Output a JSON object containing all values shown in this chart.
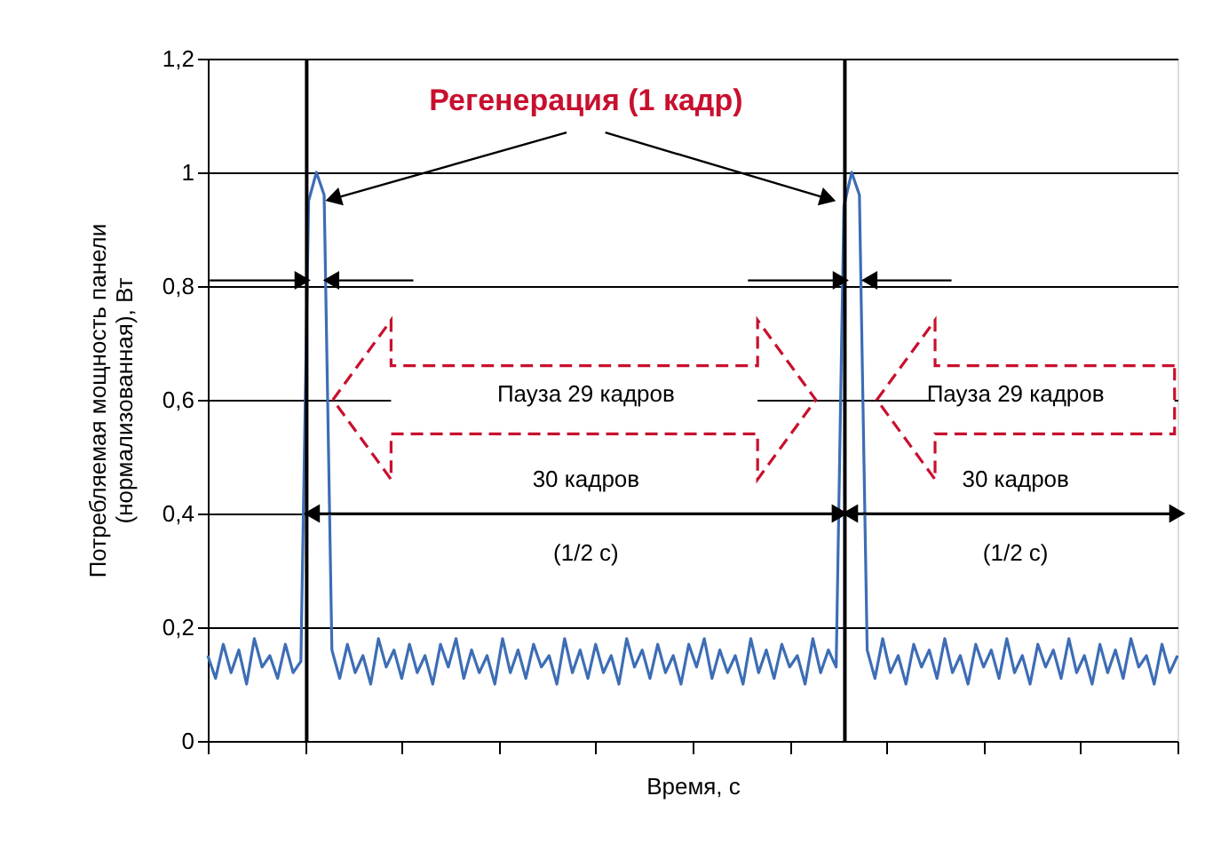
{
  "chart_data": {
    "type": "line",
    "xlabel": "Время, с",
    "ylabel": "Потребляемая мощность панели\n(нормализованная), Вт",
    "categories": [
      null,
      null,
      null,
      null,
      null,
      null,
      null,
      null,
      null,
      null,
      null,
      null,
      null,
      null,
      null,
      null,
      null,
      null,
      null,
      null,
      null,
      null,
      null,
      null,
      null,
      null,
      null,
      null,
      null,
      null,
      null,
      null,
      null,
      null,
      null,
      null,
      null,
      null,
      null,
      null,
      null,
      null,
      null,
      null,
      null,
      null,
      null,
      null,
      null,
      null,
      null,
      null,
      null,
      null,
      null,
      null,
      null,
      null,
      null,
      null,
      null,
      null,
      null,
      null,
      null,
      null,
      null,
      null,
      null,
      null,
      null,
      null,
      null,
      null,
      null,
      null,
      null,
      null,
      null,
      null,
      null,
      null,
      null,
      null,
      null,
      null,
      null,
      null,
      null,
      null,
      null,
      null,
      null,
      null,
      null,
      null,
      null,
      null,
      null,
      null,
      null,
      null,
      null,
      null,
      null,
      null,
      null,
      null,
      null,
      null,
      null,
      null,
      null,
      null,
      null,
      null,
      null,
      null,
      null,
      null,
      null,
      null,
      null,
      null,
      null,
      null
    ],
    "ylim": [
      0,
      1.2
    ],
    "yticks": [
      0,
      {
        "value": 0.2,
        "label": "0,2"
      },
      {
        "value": 0.4,
        "label": "0,4"
      },
      {
        "value": 0.6,
        "label": "0,6"
      },
      {
        "value": 0.8,
        "label": "0,8"
      },
      1,
      {
        "value": 1.2,
        "label": "1,2"
      }
    ],
    "tick_labels": "y",
    "grid": "y",
    "marker": "none",
    "line_style": "solid",
    "series": [
      {
        "color": "#3d6db5",
        "values": [
          0.15,
          0.11,
          0.17,
          0.12,
          0.16,
          0.1,
          0.18,
          0.13,
          0.15,
          0.11,
          0.17,
          0.12,
          0.14,
          0.95,
          1.0,
          0.96,
          0.16,
          0.11,
          0.17,
          0.12,
          0.15,
          0.1,
          0.18,
          0.13,
          0.16,
          0.11,
          0.17,
          0.12,
          0.15,
          0.1,
          0.17,
          0.13,
          0.18,
          0.11,
          0.16,
          0.12,
          0.15,
          0.1,
          0.18,
          0.12,
          0.16,
          0.11,
          0.17,
          0.13,
          0.15,
          0.1,
          0.18,
          0.12,
          0.16,
          0.11,
          0.17,
          0.12,
          0.15,
          0.1,
          0.18,
          0.13,
          0.16,
          0.11,
          0.17,
          0.12,
          0.15,
          0.1,
          0.17,
          0.13,
          0.18,
          0.11,
          0.16,
          0.12,
          0.15,
          0.1,
          0.18,
          0.12,
          0.16,
          0.11,
          0.17,
          0.13,
          0.15,
          0.1,
          0.18,
          0.12,
          0.16,
          0.13,
          0.94,
          1.0,
          0.96,
          0.16,
          0.11,
          0.18,
          0.12,
          0.15,
          0.1,
          0.17,
          0.13,
          0.16,
          0.11,
          0.18,
          0.12,
          0.15,
          0.1,
          0.17,
          0.13,
          0.16,
          0.11,
          0.18,
          0.12,
          0.15,
          0.1,
          0.17,
          0.13,
          0.16,
          0.11,
          0.18,
          0.12,
          0.15,
          0.1,
          0.17,
          0.12,
          0.16,
          0.11,
          0.18,
          0.13,
          0.15,
          0.1,
          0.17,
          0.12,
          0.15
        ]
      }
    ],
    "annotations": [
      "Регенерация (1 кадр)",
      "Пауза 29 кадров",
      "Пауза 29 кадров",
      "30 кадров",
      "30 кадров",
      "(1/2 с)",
      "(1/2 с)"
    ]
  }
}
